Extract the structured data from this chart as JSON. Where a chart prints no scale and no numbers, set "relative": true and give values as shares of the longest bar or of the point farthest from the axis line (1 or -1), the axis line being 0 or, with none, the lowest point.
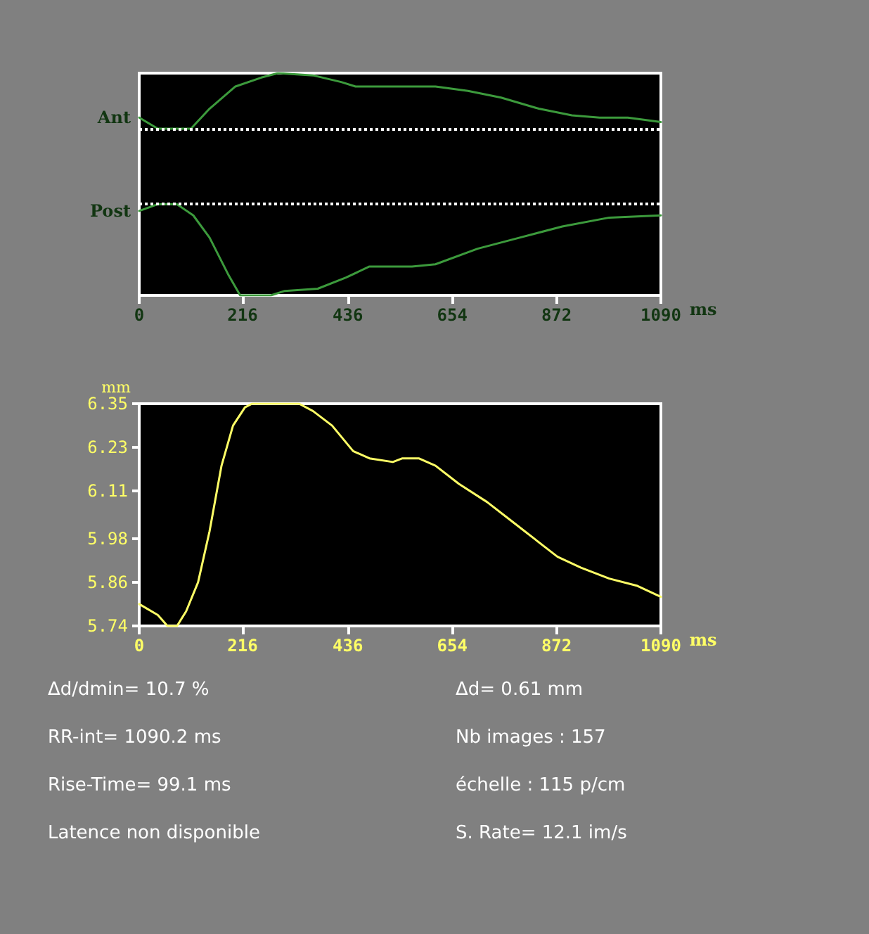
{
  "chart_data": [
    {
      "type": "line",
      "relative": true,
      "xlabel": "ms",
      "xlim": [
        0,
        1090
      ],
      "xticks": [
        0,
        216,
        436,
        654,
        872,
        1090
      ],
      "grid": false,
      "legend": false,
      "marker": "none",
      "line_style": "solid",
      "series": [
        {
          "name": "Ant",
          "color": "#3c9a3c",
          "x": [
            0,
            39,
            108,
            147,
            201,
            255,
            290,
            363,
            422,
            452,
            619,
            687,
            756,
            835,
            904,
            962,
            1021,
            1090
          ],
          "values": [
            0.8,
            0.75,
            0.75,
            0.84,
            0.94,
            0.98,
            1.0,
            0.99,
            0.96,
            0.94,
            0.94,
            0.92,
            0.89,
            0.84,
            0.81,
            0.8,
            0.8,
            0.78
          ]
        },
        {
          "name": "Post",
          "color": "#3c9a3c",
          "x": [
            0,
            39,
            79,
            113,
            147,
            187,
            211,
            275,
            304,
            373,
            432,
            481,
            570,
            619,
            707,
            795,
            884,
            982,
            1090
          ],
          "values": [
            0.38,
            0.41,
            0.41,
            0.36,
            0.26,
            0.09,
            0.0,
            0.0,
            0.02,
            0.03,
            0.08,
            0.13,
            0.13,
            0.14,
            0.21,
            0.26,
            0.31,
            0.35,
            0.36
          ]
        }
      ],
      "ref_lines": [
        {
          "axis": "y",
          "value": 0.75,
          "color": "#ffffff",
          "line_style": "dotted"
        },
        {
          "axis": "y",
          "value": 0.41,
          "color": "#ffffff",
          "line_style": "dotted"
        }
      ]
    },
    {
      "type": "line",
      "xlabel": "ms",
      "ylabel": "mm",
      "xlim": [
        0,
        1090
      ],
      "xticks": [
        0,
        216,
        436,
        654,
        872,
        1090
      ],
      "ylim": [
        5.74,
        6.35
      ],
      "yticks": [
        5.74,
        5.86,
        5.98,
        6.11,
        6.23,
        6.35
      ],
      "grid": false,
      "legend": false,
      "marker": "none",
      "line_style": "solid",
      "series": [
        {
          "color": "#ffff66",
          "x": [
            0,
            39,
            59,
            79,
            98,
            123,
            147,
            172,
            196,
            221,
            236,
            334,
            363,
            403,
            447,
            481,
            530,
            550,
            584,
            619,
            668,
            727,
            776,
            825,
            874,
            923,
            982,
            1041,
            1090
          ],
          "values": [
            5.8,
            5.77,
            5.74,
            5.74,
            5.78,
            5.86,
            6.0,
            6.18,
            6.29,
            6.34,
            6.35,
            6.35,
            6.33,
            6.29,
            6.22,
            6.2,
            6.19,
            6.2,
            6.2,
            6.18,
            6.13,
            6.08,
            6.03,
            5.98,
            5.93,
            5.9,
            5.87,
            5.85,
            5.82
          ]
        }
      ],
      "annotations": [
        "Δd/dmin= 10.7 %",
        "Δd= 0.61 mm",
        "RR-int= 1090.2 ms",
        "Nb images : 157",
        "Rise-Time= 99.1 ms",
        "échelle : 115 p/cm",
        "Latence non disponible",
        "S. Rate= 12.1 im/s"
      ]
    }
  ]
}
